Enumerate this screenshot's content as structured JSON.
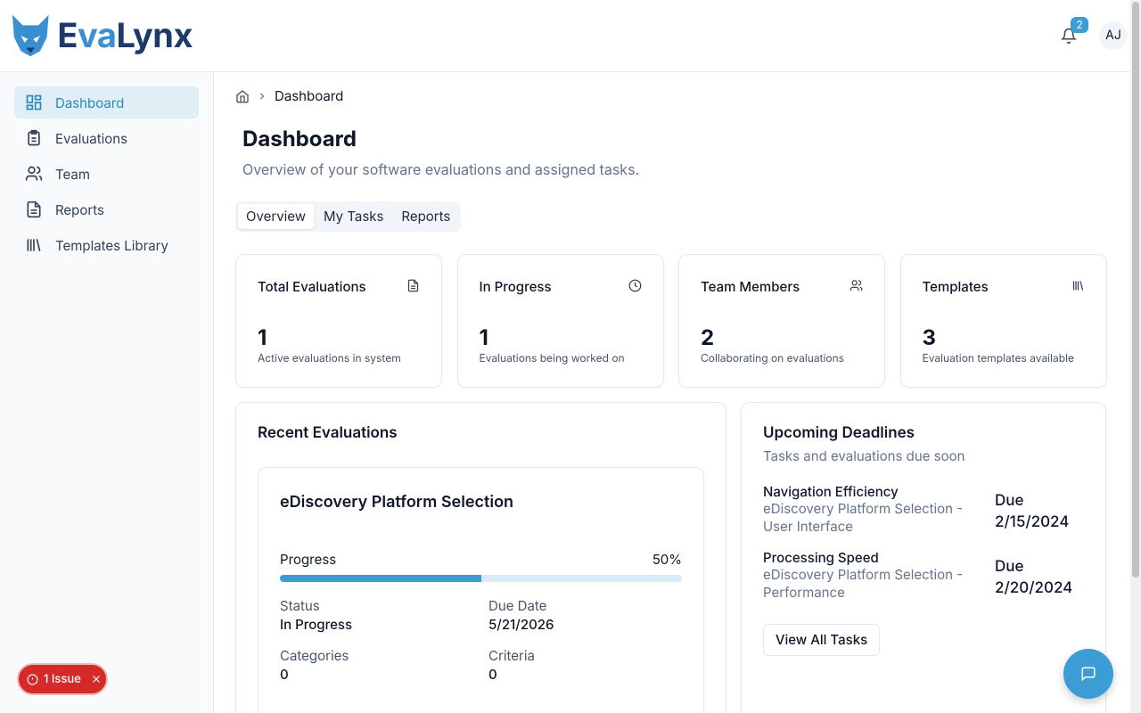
{
  "header": {
    "logo": "EvaLynx",
    "notifications": "2",
    "avatar": "AJ"
  },
  "sidebar": {
    "items": [
      "Dashboard",
      "Evaluations",
      "Team",
      "Reports",
      "Templates Library"
    ]
  },
  "breadcrumb": {
    "current": "Dashboard"
  },
  "page": {
    "title": "Dashboard",
    "subtitle": "Overview of your software evaluations and assigned tasks."
  },
  "tabs": [
    "Overview",
    "My Tasks",
    "Reports"
  ],
  "stats": [
    {
      "title": "Total Evaluations",
      "value": "1",
      "caption": "Active evaluations in system"
    },
    {
      "title": "In Progress",
      "value": "1",
      "caption": "Evaluations being worked on"
    },
    {
      "title": "Team Members",
      "value": "2",
      "caption": "Collaborating on evaluations"
    },
    {
      "title": "Templates",
      "value": "3",
      "caption": "Evaluation templates available"
    }
  ],
  "recent": {
    "title": "Recent Evaluations",
    "evaluation": {
      "name": "eDiscovery Platform Selection",
      "progress_label": "Progress",
      "progress": {
        "value": 50,
        "label": "50%"
      },
      "fields": [
        {
          "label": "Status",
          "value": "In Progress"
        },
        {
          "label": "Due Date",
          "value": "5/21/2026"
        },
        {
          "label": "Categories",
          "value": "0"
        },
        {
          "label": "Criteria",
          "value": "0"
        }
      ]
    }
  },
  "deadlines": {
    "title": "Upcoming Deadlines",
    "subtitle": "Tasks and evaluations due soon",
    "items": [
      {
        "name": "Navigation Efficiency",
        "detail": "eDiscovery Platform Selection - User Interface",
        "due": "Due 2/15/2024"
      },
      {
        "name": "Processing Speed",
        "detail": "eDiscovery Platform Selection - Performance",
        "due": "Due 2/20/2024"
      }
    ],
    "button": "View All Tasks"
  },
  "toast": {
    "label": "1 Issue"
  }
}
